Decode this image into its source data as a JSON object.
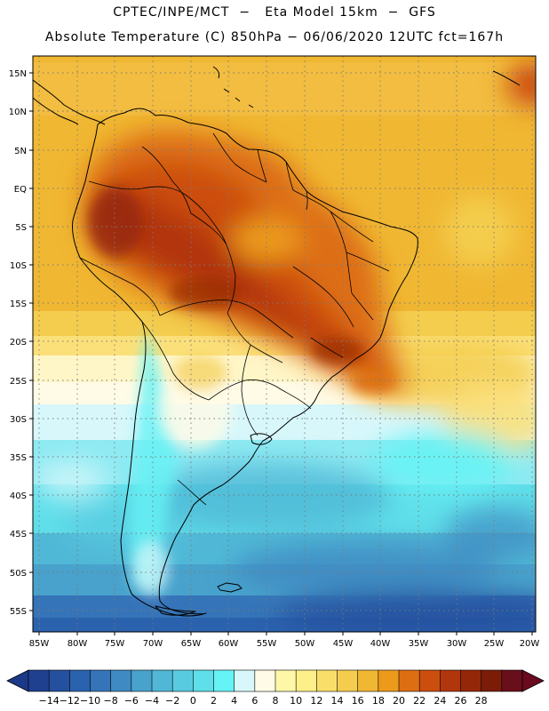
{
  "header": {
    "line1": "CPTEC/INPE/MCT  −   Eta Model 15km  −  GFS",
    "line2": "Absolute Temperature (C) 850hPa − 06/06/2020 12UTC fct=167h"
  },
  "axes": {
    "lat_labels": [
      "15N",
      "10N",
      "5N",
      "EQ",
      "5S",
      "10S",
      "15S",
      "20S",
      "25S",
      "30S",
      "35S",
      "40S",
      "45S",
      "50S",
      "55S"
    ],
    "lon_labels": [
      "85W",
      "80W",
      "75W",
      "70W",
      "65W",
      "60W",
      "55W",
      "50W",
      "45W",
      "40W",
      "35W",
      "30W",
      "25W",
      "20W"
    ]
  },
  "colorbar": {
    "labels": [
      "-14",
      "-12",
      "-10",
      "-8",
      "-6",
      "-4",
      "-2",
      "0",
      "2",
      "4",
      "6",
      "8",
      "10",
      "12",
      "14",
      "16",
      "18",
      "20",
      "22",
      "24",
      "26",
      "28"
    ],
    "colors": [
      "#1f3f8f",
      "#25509e",
      "#2b62ae",
      "#3574b8",
      "#3f8ac2",
      "#48a2cc",
      "#50b8d6",
      "#58cbe0",
      "#5fdfea",
      "#66f3f5",
      "#d7f7fb",
      "#fffbe6",
      "#fff7a8",
      "#fdef8a",
      "#f9df6a",
      "#f4cd4e",
      "#f0b732",
      "#eb9a1c",
      "#dd6e12",
      "#cc4e0e",
      "#b2360c",
      "#952709",
      "#7a1c08",
      "#690f1c"
    ],
    "under_color": "#1c3888",
    "over_color": "#6a0a1f"
  }
}
